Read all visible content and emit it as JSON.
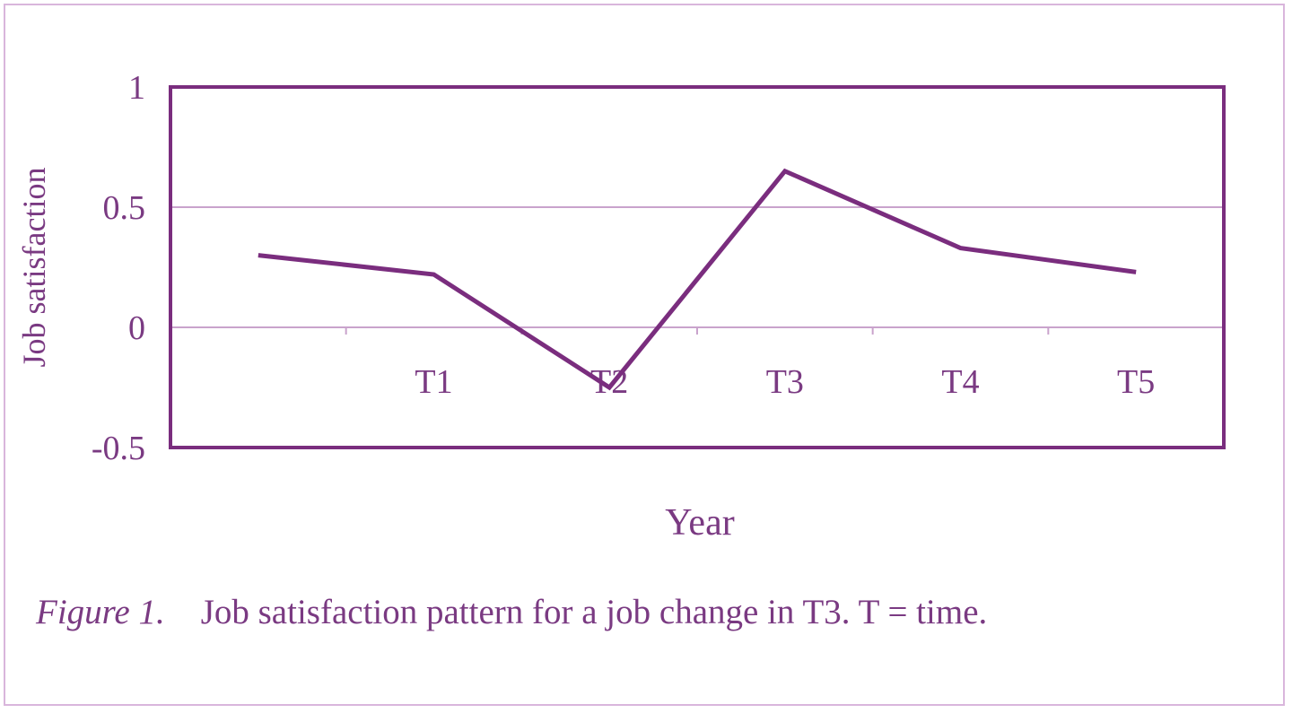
{
  "colors": {
    "line": "#7a2d7e",
    "frame": "#7a2d7e",
    "grid": "#c9a3cc",
    "text": "#7a3a82"
  },
  "caption": {
    "label": "Figure 1.",
    "text": "Job satisfaction pattern for a job change in T3. T = time."
  },
  "chart_data": {
    "type": "line",
    "xlabel": "Year",
    "ylabel": "Job satisfaction",
    "ylim": [
      -0.5,
      1
    ],
    "yticks": [
      -0.5,
      0,
      0.5,
      1
    ],
    "ytick_labels": [
      "-0.5",
      "0",
      "0.5",
      "1"
    ],
    "categories": [
      "",
      "T1",
      "T2",
      "T3",
      "T4",
      "T5"
    ],
    "values": [
      0.3,
      0.22,
      -0.25,
      0.65,
      0.33,
      0.23
    ],
    "grid": "horizontal",
    "legend": "none"
  }
}
